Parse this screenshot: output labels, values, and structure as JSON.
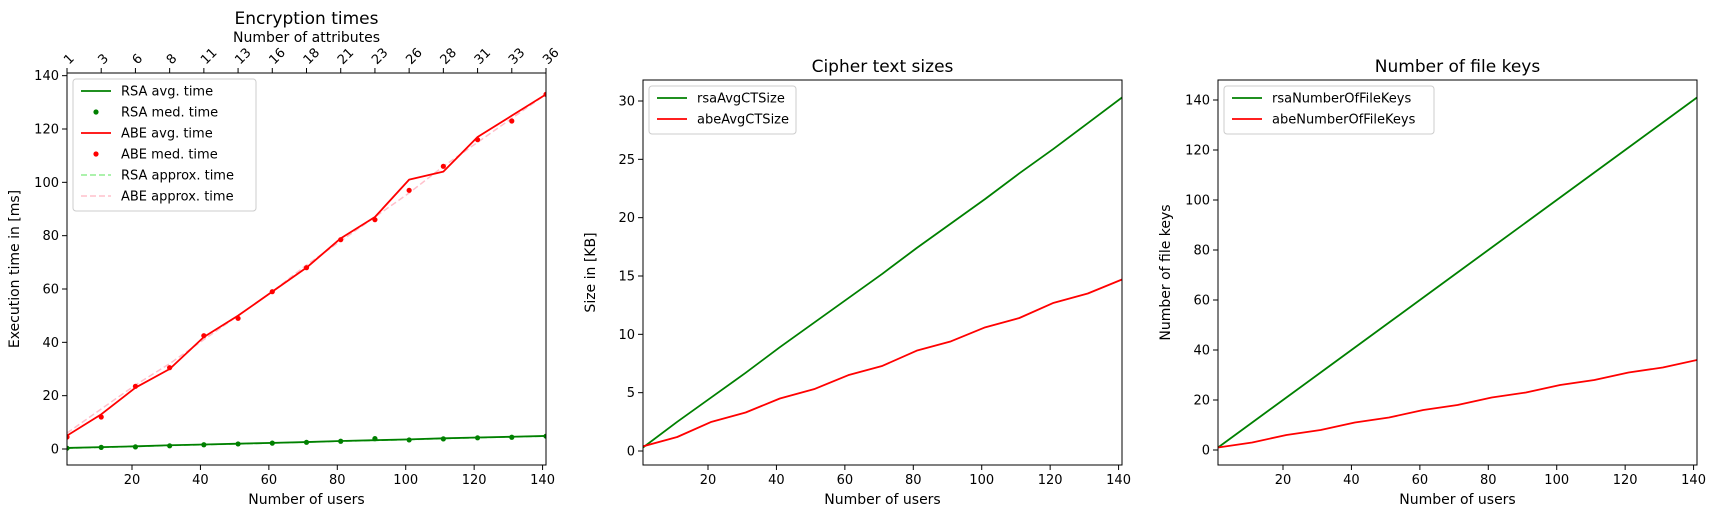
{
  "chart_data": [
    {
      "id": "encryption",
      "type": "line",
      "title": "Encryption times",
      "xlabel": "Number of users",
      "ylabel": "Execution time in [ms]",
      "x2label": "Number of attributes",
      "xlim": [
        1,
        141
      ],
      "ylim": [
        -6,
        141
      ],
      "xticks": [
        20,
        40,
        60,
        80,
        100,
        120,
        140
      ],
      "yticks": [
        0,
        20,
        40,
        60,
        80,
        100,
        120,
        140
      ],
      "x2": {
        "positions": [
          1,
          11,
          21,
          31,
          41,
          51,
          61,
          71,
          81,
          91,
          101,
          111,
          121,
          131,
          141
        ],
        "labels": [
          "1",
          "3",
          "6",
          "8",
          "11",
          "13",
          "16",
          "18",
          "21",
          "23",
          "26",
          "28",
          "31",
          "33",
          "36"
        ]
      },
      "x": [
        1,
        11,
        21,
        31,
        41,
        51,
        61,
        71,
        81,
        91,
        101,
        111,
        121,
        131,
        141
      ],
      "legend": {
        "placement": "upper-left"
      },
      "series": [
        {
          "name": "RSA avg. time",
          "style": "line",
          "color": "#008000",
          "values": [
            0.4,
            0.7,
            1.0,
            1.4,
            1.7,
            2.0,
            2.3,
            2.6,
            3.0,
            3.3,
            3.6,
            4.0,
            4.3,
            4.6,
            4.9
          ]
        },
        {
          "name": "RSA med. time",
          "style": "dots",
          "color": "#008000",
          "values": [
            0.3,
            0.6,
            0.8,
            1.2,
            1.6,
            1.9,
            2.2,
            2.5,
            2.9,
            3.9,
            3.4,
            3.8,
            4.2,
            4.4,
            4.8
          ]
        },
        {
          "name": "ABE avg. time",
          "style": "line",
          "color": "#ff0000",
          "values": [
            5,
            13,
            23,
            30,
            42,
            50,
            59,
            68,
            79,
            87,
            101,
            104,
            117,
            125,
            133
          ]
        },
        {
          "name": "ABE med. time",
          "style": "dots",
          "color": "#ff0000",
          "values": [
            4.5,
            12,
            23.5,
            30.5,
            42.5,
            49,
            59,
            68,
            78.5,
            86,
            97,
            106,
            116,
            123,
            133
          ]
        },
        {
          "name": "RSA approx. time",
          "style": "dashed",
          "color": "#90ee90",
          "values": [
            0.3,
            0.6,
            0.9,
            1.3,
            1.6,
            1.9,
            2.2,
            2.6,
            2.9,
            3.2,
            3.5,
            3.9,
            4.2,
            4.5,
            4.8
          ]
        },
        {
          "name": "ABE approx. time",
          "style": "dashed",
          "color": "#ffc0cb",
          "values": [
            6,
            15,
            24,
            32,
            41,
            50,
            59,
            69,
            78,
            87,
            96,
            106,
            115,
            124,
            133
          ]
        }
      ]
    },
    {
      "id": "ciphertext",
      "type": "line",
      "title": "Cipher text sizes",
      "xlabel": "Number of users",
      "ylabel": "Size in [KB]",
      "xlim": [
        1,
        141
      ],
      "ylim": [
        -1.2,
        31.8
      ],
      "xticks": [
        20,
        40,
        60,
        80,
        100,
        120,
        140
      ],
      "yticks": [
        0,
        5,
        10,
        15,
        20,
        25,
        30
      ],
      "x": [
        1,
        11,
        21,
        31,
        41,
        51,
        61,
        71,
        81,
        91,
        101,
        111,
        121,
        131,
        141
      ],
      "legend": {
        "placement": "upper-left"
      },
      "series": [
        {
          "name": "rsaAvgCTSize",
          "style": "line",
          "color": "#008000",
          "values": [
            0.3,
            2.5,
            4.6,
            6.7,
            8.9,
            11.0,
            13.1,
            15.2,
            17.4,
            19.5,
            21.6,
            23.8,
            25.9,
            28.1,
            30.3
          ]
        },
        {
          "name": "abeAvgCTSize",
          "style": "line",
          "color": "#ff0000",
          "values": [
            0.4,
            1.2,
            2.5,
            3.3,
            4.5,
            5.3,
            6.5,
            7.3,
            8.6,
            9.4,
            10.6,
            11.4,
            12.7,
            13.5,
            14.7
          ]
        }
      ]
    },
    {
      "id": "filekeys",
      "type": "line",
      "title": "Number of file keys",
      "xlabel": "Number of users",
      "ylabel": "Number of file keys",
      "xlim": [
        1,
        141
      ],
      "ylim": [
        -6,
        148
      ],
      "xticks": [
        20,
        40,
        60,
        80,
        100,
        120,
        140
      ],
      "yticks": [
        0,
        20,
        40,
        60,
        80,
        100,
        120,
        140
      ],
      "x": [
        1,
        11,
        21,
        31,
        41,
        51,
        61,
        71,
        81,
        91,
        101,
        111,
        121,
        131,
        141
      ],
      "legend": {
        "placement": "upper-left"
      },
      "series": [
        {
          "name": "rsaNumberOfFileKeys",
          "style": "line",
          "color": "#008000",
          "values": [
            1,
            11,
            21,
            31,
            41,
            51,
            61,
            71,
            81,
            91,
            101,
            111,
            121,
            131,
            141
          ]
        },
        {
          "name": "abeNumberOfFileKeys",
          "style": "line",
          "color": "#ff0000",
          "values": [
            1,
            3,
            6,
            8,
            11,
            13,
            16,
            18,
            21,
            23,
            26,
            28,
            31,
            33,
            36
          ]
        }
      ]
    }
  ]
}
